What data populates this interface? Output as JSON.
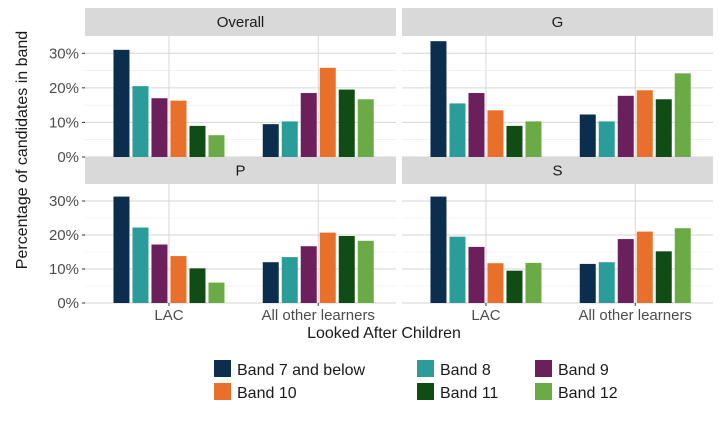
{
  "chart_data": {
    "type": "bar",
    "xlabel": "Looked After Children",
    "ylabel": "Percentage of candidates in band",
    "categories": [
      "LAC",
      "All other learners"
    ],
    "yticks": [
      "0%",
      "10%",
      "20%",
      "30%"
    ],
    "ylim": [
      0,
      35
    ],
    "grid": true,
    "legend_position": "bottom",
    "series_names": [
      "Band 7 and below",
      "Band 8",
      "Band 9",
      "Band 10",
      "Band 11",
      "Band 12"
    ],
    "series_colors": [
      "#0b2e4f",
      "#2a9d9b",
      "#6b1f5c",
      "#e8702a",
      "#0f4d14",
      "#6aab45"
    ],
    "panels": [
      {
        "title": "Overall",
        "series": [
          {
            "name": "Band 7 and below",
            "values": [
              31,
              9.5
            ]
          },
          {
            "name": "Band 8",
            "values": [
              20.5,
              10.3
            ]
          },
          {
            "name": "Band 9",
            "values": [
              17,
              18.5
            ]
          },
          {
            "name": "Band 10",
            "values": [
              16.3,
              25.8
            ]
          },
          {
            "name": "Band 11",
            "values": [
              9,
              19.5
            ]
          },
          {
            "name": "Band 12",
            "values": [
              6.3,
              16.7
            ]
          }
        ]
      },
      {
        "title": "G",
        "series": [
          {
            "name": "Band 7 and below",
            "values": [
              33.5,
              12.3
            ]
          },
          {
            "name": "Band 8",
            "values": [
              15.5,
              10.3
            ]
          },
          {
            "name": "Band 9",
            "values": [
              18.5,
              17.7
            ]
          },
          {
            "name": "Band 10",
            "values": [
              13.5,
              19.3
            ]
          },
          {
            "name": "Band 11",
            "values": [
              9,
              16.7
            ]
          },
          {
            "name": "Band 12",
            "values": [
              10.3,
              24.2
            ]
          }
        ]
      },
      {
        "title": "P",
        "series": [
          {
            "name": "Band 7 and below",
            "values": [
              31.3,
              12
            ]
          },
          {
            "name": "Band 8",
            "values": [
              22.2,
              13.5
            ]
          },
          {
            "name": "Band 9",
            "values": [
              17.2,
              16.7
            ]
          },
          {
            "name": "Band 10",
            "values": [
              13.8,
              20.7
            ]
          },
          {
            "name": "Band 11",
            "values": [
              10.2,
              19.7
            ]
          },
          {
            "name": "Band 12",
            "values": [
              6,
              18.3
            ]
          }
        ]
      },
      {
        "title": "S",
        "series": [
          {
            "name": "Band 7 and below",
            "values": [
              31.3,
              11.5
            ]
          },
          {
            "name": "Band 8",
            "values": [
              19.5,
              12
            ]
          },
          {
            "name": "Band 9",
            "values": [
              16.5,
              18.8
            ]
          },
          {
            "name": "Band 10",
            "values": [
              11.7,
              21
            ]
          },
          {
            "name": "Band 11",
            "values": [
              9.5,
              15.2
            ]
          },
          {
            "name": "Band 12",
            "values": [
              11.8,
              22
            ]
          }
        ]
      }
    ]
  }
}
